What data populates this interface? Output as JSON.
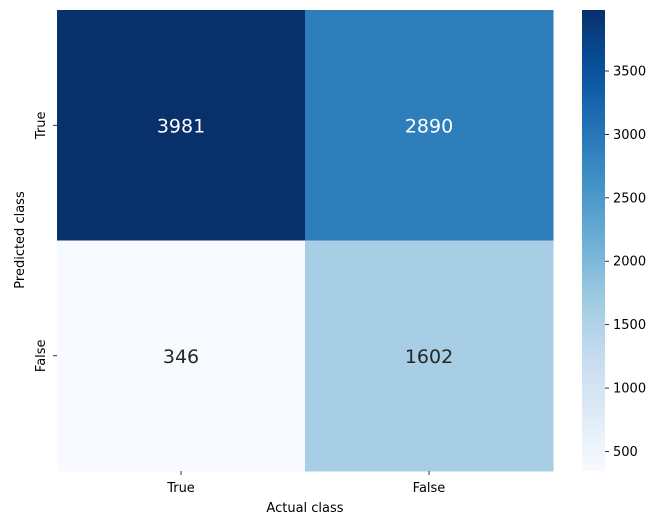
{
  "chart_data": {
    "type": "heatmap",
    "title": "",
    "xlabel": "Actual class",
    "ylabel": "Predicted class",
    "x_categories": [
      "True",
      "False"
    ],
    "y_categories": [
      "True",
      "False"
    ],
    "values": [
      [
        3981,
        2890
      ],
      [
        346,
        1602
      ]
    ],
    "colormap": "Blues",
    "value_range": [
      346,
      3981
    ],
    "colorbar_ticks": [
      500,
      1000,
      1500,
      2000,
      2500,
      3000,
      3500
    ]
  }
}
